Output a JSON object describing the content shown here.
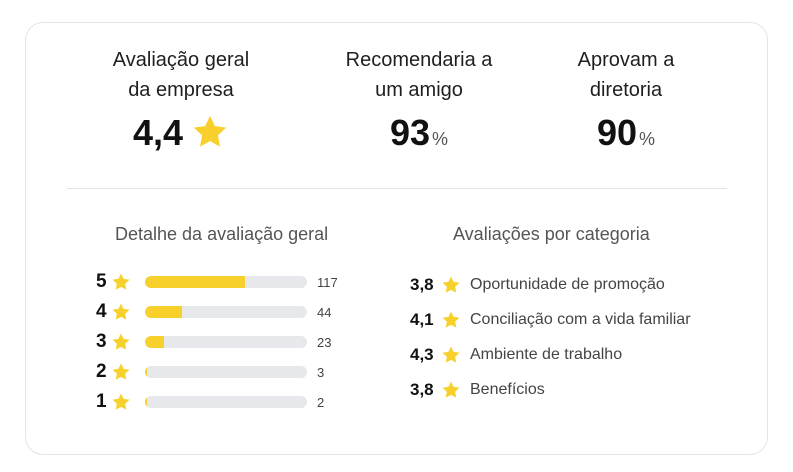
{
  "colors": {
    "accent": "#f7d02c",
    "bar_track": "#e6e8ec",
    "star": "#f7d02c"
  },
  "summary": {
    "overall": {
      "label_line1": "Avaliação geral",
      "label_line2": "da empresa",
      "value": "4,4",
      "icon": "star-icon"
    },
    "recommend": {
      "label_line1": "Recomendaria a",
      "label_line2": "um amigo",
      "value": "93",
      "unit": "%"
    },
    "approve": {
      "label_line1": "Aprovam a",
      "label_line2": "diretoria",
      "value": "90",
      "unit": "%"
    }
  },
  "distribution": {
    "title": "Detalhe da avaliação geral",
    "rows": [
      {
        "stars": "5",
        "count": "117",
        "fill": 0.62
      },
      {
        "stars": "4",
        "count": "44",
        "fill": 0.23
      },
      {
        "stars": "3",
        "count": "23",
        "fill": 0.12
      },
      {
        "stars": "2",
        "count": "3",
        "fill": 0.015
      },
      {
        "stars": "1",
        "count": "2",
        "fill": 0.01
      }
    ]
  },
  "categories": {
    "title": "Avaliações por categoria",
    "items": [
      {
        "score": "3,8",
        "name": "Oportunidade de promoção"
      },
      {
        "score": "4,1",
        "name": "Conciliação com a vida familiar"
      },
      {
        "score": "4,3",
        "name": "Ambiente de trabalho"
      },
      {
        "score": "3,8",
        "name": "Benefícios"
      }
    ]
  }
}
